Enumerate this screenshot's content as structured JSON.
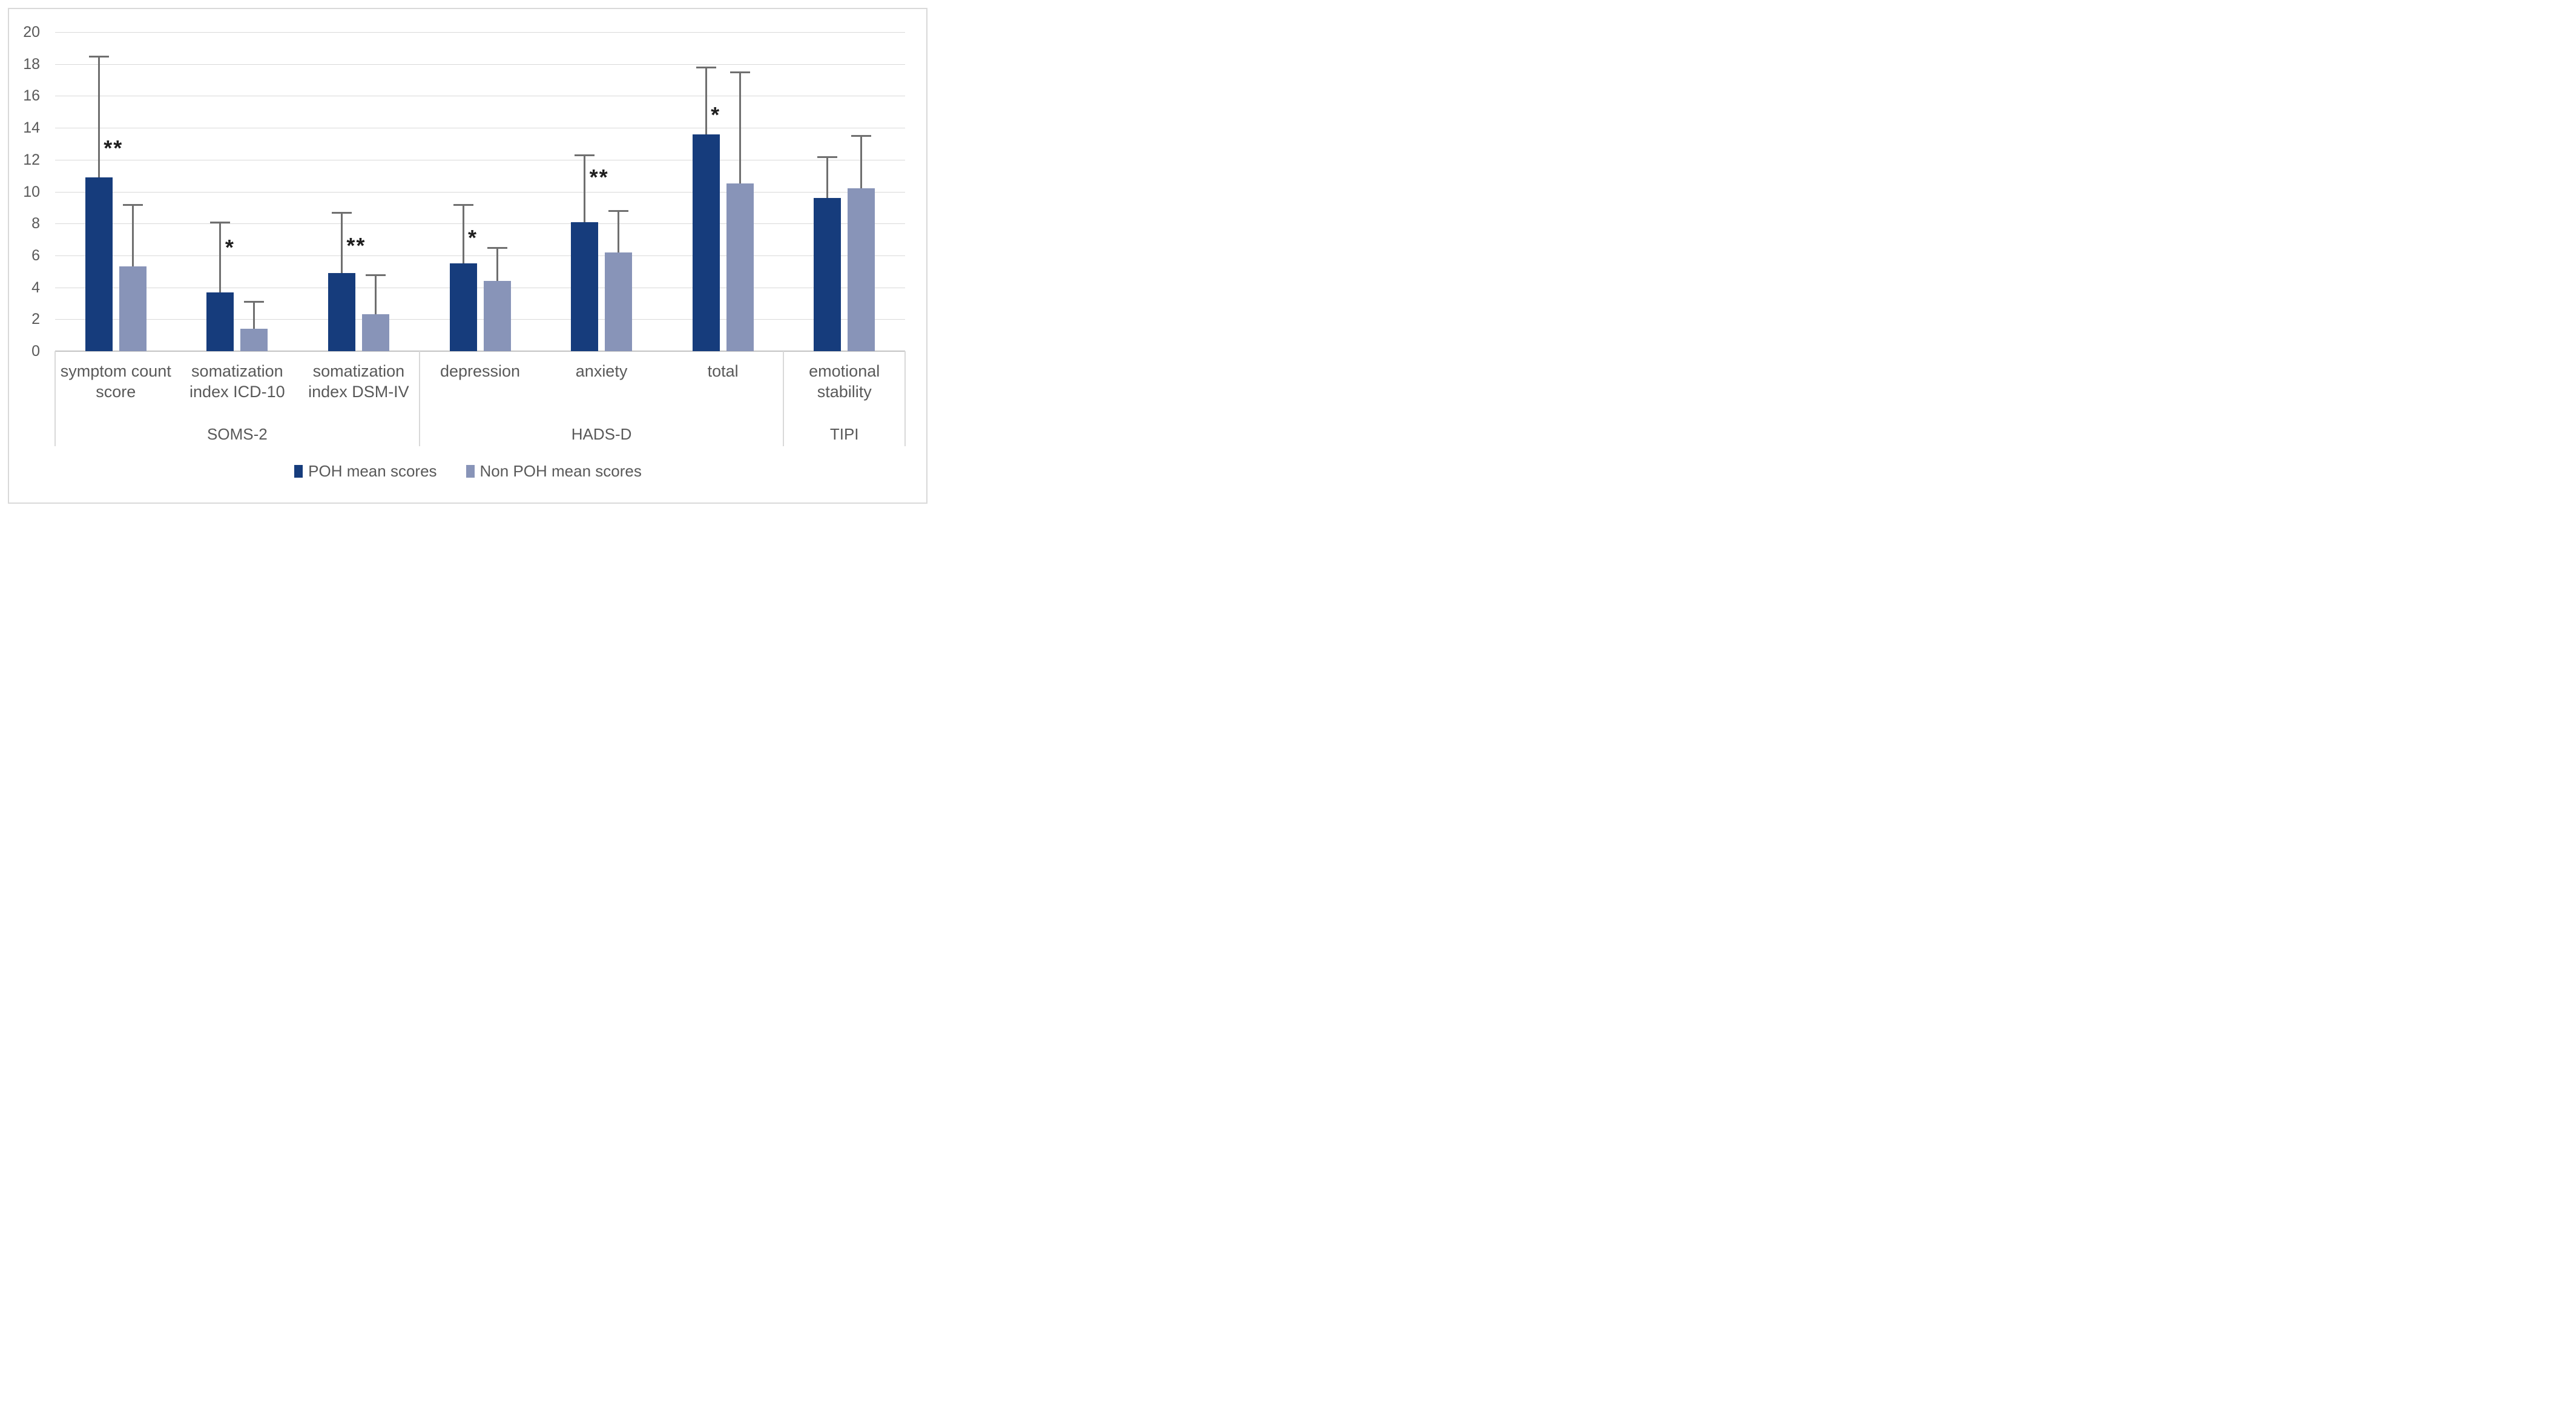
{
  "figure": {
    "background_color": "#ffffff",
    "frame_border_color": "#d9d9d9",
    "gridline_color": "#d9d9d9",
    "axis_line_color": "#c3c3c3",
    "error_bar_color": "#6f6f6f",
    "text_color": "#595959",
    "significance_color": "#1f1f1f"
  },
  "legend": {
    "items": [
      {
        "label": "POH mean scores",
        "color": "#163c7c"
      },
      {
        "label": "Non POH mean scores",
        "color": "#8894b8"
      }
    ]
  },
  "chart_data": {
    "type": "bar",
    "title": "",
    "xlabel": "",
    "ylabel": "",
    "ylim": [
      0,
      20
    ],
    "ytick_step": 2,
    "yticks": [
      0,
      2,
      4,
      6,
      8,
      10,
      12,
      14,
      16,
      18,
      20
    ],
    "grid": true,
    "legend_position": "bottom",
    "error_bars": "upper only",
    "categories": [
      "symptom count score",
      "somatization index ICD-10",
      "somatization index DSM-IV",
      "depression",
      "anxiety",
      "total",
      "emotional stability"
    ],
    "category_label_lines": [
      [
        "symptom count",
        "score"
      ],
      [
        "somatization",
        "index ICD-10"
      ],
      [
        "somatization",
        "index DSM-IV"
      ],
      [
        "depression"
      ],
      [
        "anxiety"
      ],
      [
        "total"
      ],
      [
        "emotional",
        "stability"
      ]
    ],
    "category_groups": [
      {
        "label": "SOMS-2",
        "span": 3
      },
      {
        "label": "HADS-D",
        "span": 3
      },
      {
        "label": "TIPI",
        "span": 1
      }
    ],
    "series": [
      {
        "name": "POH mean scores",
        "color": "#163c7c",
        "values": [
          10.9,
          3.7,
          4.9,
          5.5,
          8.1,
          13.6,
          9.6
        ],
        "error_tops": [
          18.5,
          8.1,
          8.7,
          9.2,
          12.3,
          17.8,
          12.2
        ]
      },
      {
        "name": "Non POH mean scores",
        "color": "#8894b8",
        "values": [
          5.3,
          1.4,
          2.3,
          4.4,
          6.2,
          10.5,
          10.2
        ],
        "error_tops": [
          9.2,
          3.1,
          4.8,
          6.5,
          8.8,
          17.5,
          13.5
        ]
      }
    ],
    "significance_markers": [
      {
        "category_index": 0,
        "text": "**",
        "v": 12.7
      },
      {
        "category_index": 1,
        "text": "*",
        "v": 6.5
      },
      {
        "category_index": 2,
        "text": "**",
        "v": 6.6
      },
      {
        "category_index": 3,
        "text": "*",
        "v": 7.1
      },
      {
        "category_index": 4,
        "text": "**",
        "v": 10.9
      },
      {
        "category_index": 5,
        "text": "*",
        "v": 14.8
      }
    ]
  }
}
